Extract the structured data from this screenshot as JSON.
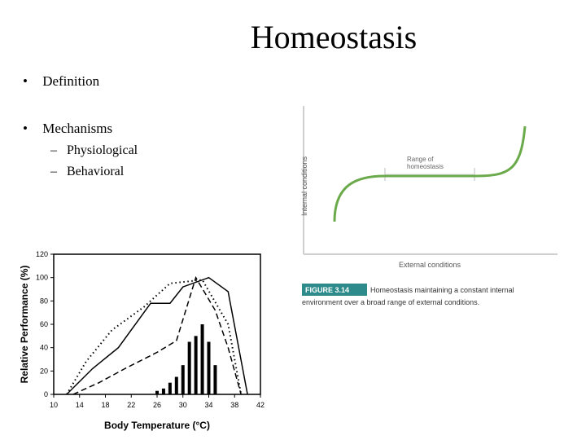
{
  "slide": {
    "title": "Homeostasis",
    "bullets": [
      {
        "marker": "•",
        "text": "Definition"
      },
      {
        "marker": "•",
        "text": "Mechanisms"
      }
    ],
    "sub_bullets": [
      {
        "marker": "–",
        "text": "Physiological"
      },
      {
        "marker": "–",
        "text": "Behavioral"
      }
    ]
  },
  "figure_right": {
    "ylabel": "Internal conditions",
    "xlabel": "External conditions",
    "range_label_line1": "Range of",
    "range_label_line2": "homeostasis",
    "caption_tag": "FIGURE 3.14",
    "caption_line1": "Homeostasis maintaining a constant internal",
    "caption_line2": "environment over a broad range of external conditions.",
    "curve_color": "#6aaa4a",
    "caption_tag_bg": "#2e8b8b"
  },
  "chart_data": {
    "type": "line",
    "title": "",
    "xlabel": "Body Temperature (°C)",
    "ylabel": "Relative Performance (%)",
    "xlim": [
      10,
      42
    ],
    "ylim": [
      0,
      120
    ],
    "x_ticks": [
      10,
      14,
      18,
      22,
      26,
      30,
      34,
      38,
      42
    ],
    "y_ticks": [
      0,
      20,
      40,
      60,
      80,
      100,
      120
    ],
    "series": [
      {
        "style": "solid",
        "x": [
          12,
          16,
          20,
          25,
          28,
          30,
          34,
          37,
          40
        ],
        "y": [
          0,
          22,
          40,
          78,
          78,
          92,
          100,
          88,
          0
        ]
      },
      {
        "style": "dotted",
        "x": [
          12,
          15,
          19,
          24,
          28,
          33,
          37,
          39
        ],
        "y": [
          0,
          28,
          55,
          75,
          95,
          98,
          60,
          0
        ]
      },
      {
        "style": "dashed",
        "x": [
          13,
          17,
          21,
          26,
          29,
          32,
          35,
          37,
          39
        ],
        "y": [
          0,
          10,
          22,
          36,
          46,
          100,
          72,
          40,
          0
        ]
      }
    ],
    "bars": {
      "x": [
        26,
        27,
        28,
        29,
        30,
        31,
        32,
        33,
        34,
        35,
        36
      ],
      "values": [
        3,
        5,
        10,
        15,
        25,
        45,
        50,
        60,
        45,
        25,
        0
      ]
    }
  }
}
